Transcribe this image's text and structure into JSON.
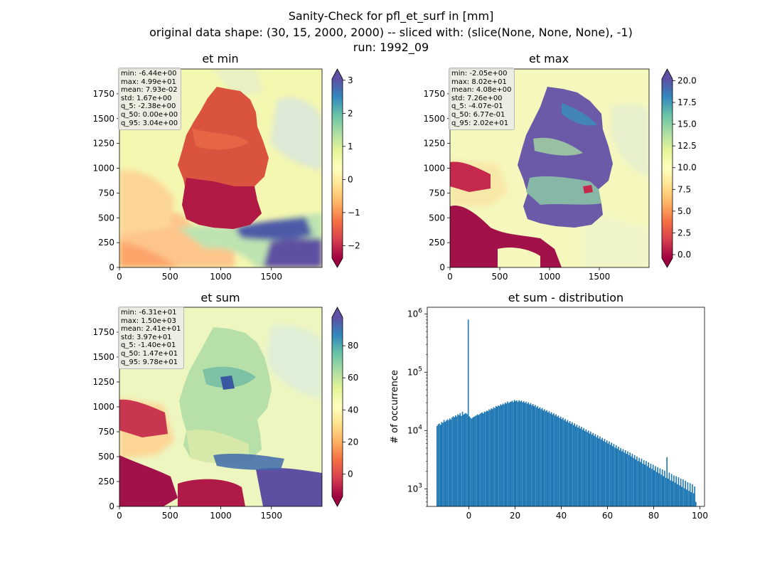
{
  "suptitle": {
    "line1": "Sanity-Check for pfl_et_surf in [mm]",
    "line2": "original data shape: (30, 15, 2000, 2000) -- sliced with: (slice(None, None, None), -1)",
    "line3": "run: 1992_09"
  },
  "colors": {
    "spectral": [
      "#9e0142",
      "#d53e4f",
      "#f46d43",
      "#fdae61",
      "#fee08b",
      "#ffffbf",
      "#e6f598",
      "#abdda4",
      "#66c2a5",
      "#3288bd",
      "#5e4fa2"
    ],
    "hist_bar": "#1f77b4"
  },
  "chart_data": [
    {
      "type": "heatmap",
      "title": "et min",
      "xlim": [
        0,
        2000
      ],
      "ylim": [
        0,
        2000
      ],
      "xticks": [
        "0",
        "500",
        "1000",
        "1500"
      ],
      "yticks": [
        "0",
        "250",
        "500",
        "750",
        "1000",
        "1250",
        "1500",
        "1750"
      ],
      "colorbar": {
        "vmin": -2.38,
        "vmax": 3.04,
        "extend": "both",
        "ticks": [
          "3",
          "2",
          "1",
          "0",
          "−1",
          "−2"
        ],
        "tick_values": [
          3,
          2,
          1,
          0,
          -1,
          -2
        ]
      },
      "stats": [
        "min: -6.44e+00",
        "max: 4.99e+01",
        "mean: 7.93e-02",
        "std: 1.67e+00",
        "q_5: -2.38e+00",
        "q_50: 0.00e+00",
        "q_95: 3.04e+00"
      ]
    },
    {
      "type": "heatmap",
      "title": "et max",
      "xlim": [
        0,
        2000
      ],
      "ylim": [
        0,
        2000
      ],
      "xticks": [
        "0",
        "500",
        "1000",
        "1500"
      ],
      "yticks": [
        "0",
        "250",
        "500",
        "750",
        "1000",
        "1250",
        "1500",
        "1750"
      ],
      "colorbar": {
        "vmin": -0.407,
        "vmax": 20.2,
        "extend": "both",
        "ticks": [
          "20.0",
          "17.5",
          "15.0",
          "12.5",
          "10.0",
          "7.5",
          "5.0",
          "2.5",
          "0.0"
        ],
        "tick_values": [
          20,
          17.5,
          15,
          12.5,
          10,
          7.5,
          5,
          2.5,
          0
        ]
      },
      "stats": [
        "min: -2.05e+00",
        "max: 8.02e+01",
        "mean: 4.08e+00",
        "std: 7.26e+00",
        "q_5: -4.07e-01",
        "q_50: 6.77e-01",
        "q_95: 2.02e+01"
      ]
    },
    {
      "type": "heatmap",
      "title": "et sum",
      "xlim": [
        0,
        2000
      ],
      "ylim": [
        0,
        2000
      ],
      "xticks": [
        "0",
        "500",
        "1000",
        "1500"
      ],
      "yticks": [
        "0",
        "250",
        "500",
        "750",
        "1000",
        "1250",
        "1500",
        "1750"
      ],
      "colorbar": {
        "vmin": -14.0,
        "vmax": 97.8,
        "extend": "both",
        "ticks": [
          "80",
          "60",
          "40",
          "20",
          "0"
        ],
        "tick_values": [
          80,
          60,
          40,
          20,
          0
        ]
      },
      "stats": [
        "min: -6.31e+01",
        "max: 1.50e+03",
        "mean: 2.41e+01",
        "std: 3.97e+01",
        "q_5: -1.40e+01",
        "q_50: 1.47e+01",
        "q_95: 9.78e+01"
      ]
    },
    {
      "type": "bar",
      "title": "et sum - distribution",
      "ylabel": "# of occurrence",
      "yscale": "log",
      "xlim": [
        -18,
        102
      ],
      "ylim": [
        500,
        1300000
      ],
      "xticks": [
        "0",
        "20",
        "40",
        "60",
        "80",
        "100"
      ],
      "xtick_values": [
        0,
        20,
        40,
        60,
        80,
        100
      ],
      "yticks": [
        {
          "v": 1000,
          "exp": "3"
        },
        {
          "v": 10000,
          "exp": "4"
        },
        {
          "v": 100000,
          "exp": "5"
        },
        {
          "v": 1000000,
          "exp": "6"
        }
      ],
      "ytick_base": "10",
      "bin_width": 0.5,
      "bin_start": -14.0,
      "counts": [
        12000,
        12800,
        13200,
        12500,
        14000,
        13600,
        15200,
        14100,
        14800,
        15600,
        15000,
        16200,
        15400,
        16800,
        17500,
        16900,
        18200,
        17400,
        19000,
        18300,
        19800,
        17800,
        21000,
        18700,
        19500,
        20000,
        19000,
        800000,
        17500,
        16500,
        16000,
        16800,
        17200,
        17800,
        18100,
        18900,
        18400,
        19200,
        19800,
        20500,
        19600,
        21200,
        20800,
        22000,
        21400,
        23100,
        22400,
        24000,
        23300,
        25100,
        24200,
        26300,
        25600,
        27000,
        26200,
        28100,
        27400,
        29000,
        28100,
        30200,
        29000,
        31500,
        29600,
        30800,
        31300,
        32500,
        30700,
        33500,
        31800,
        32800,
        30900,
        33100,
        31500,
        32600,
        30500,
        31900,
        29800,
        31200,
        28900,
        30400,
        28100,
        29600,
        27200,
        28500,
        26100,
        27400,
        25000,
        26200,
        24000,
        25100,
        23200,
        24300,
        22100,
        23200,
        21300,
        22400,
        20400,
        21500,
        19600,
        20700,
        18800,
        19800,
        18000,
        19000,
        17200,
        18100,
        16400,
        17300,
        15700,
        16600,
        15000,
        15900,
        14300,
        15200,
        13600,
        14500,
        13000,
        13900,
        12400,
        13300,
        11800,
        12700,
        11300,
        12100,
        10800,
        11600,
        10300,
        11000,
        9800,
        10500,
        9400,
        10000,
        8900,
        9600,
        8500,
        9100,
        8100,
        8700,
        7700,
        8300,
        7300,
        7900,
        7000,
        7500,
        6600,
        7200,
        6300,
        6800,
        6000,
        6500,
        5700,
        6200,
        5400,
        5900,
        5100,
        5600,
        4900,
        5300,
        4600,
        5000,
        4400,
        4800,
        4200,
        4600,
        4000,
        4400,
        3800,
        4200,
        3600,
        4000,
        3400,
        3800,
        3200,
        3600,
        3000,
        3400,
        2900,
        3300,
        2700,
        3100,
        2600,
        3000,
        2450,
        2850,
        2300,
        2700,
        2200,
        2600,
        2080,
        2450,
        1950,
        2350,
        1850,
        2250,
        1750,
        2150,
        1650,
        2050,
        1550,
        3500,
        1500,
        1900,
        1400,
        1800,
        1350,
        1700,
        1280,
        1650,
        1200,
        1580,
        1150,
        1500,
        1080,
        1450,
        1020,
        1380,
        970,
        1300,
        920,
        1250,
        880,
        1200,
        840,
        1100,
        600
      ]
    }
  ]
}
